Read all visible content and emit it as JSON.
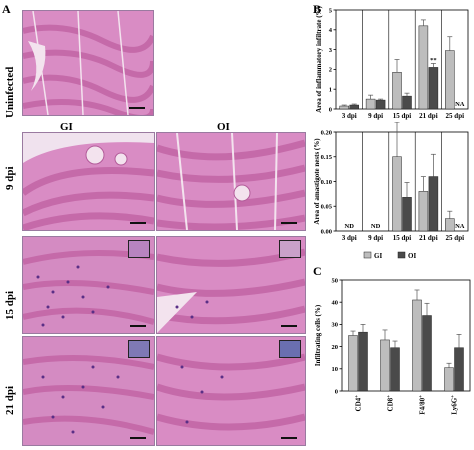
{
  "figure": {
    "panel_letters": {
      "a": "A",
      "b": "B",
      "c": "C"
    },
    "column_labels": [
      "GI",
      "OI"
    ],
    "row_labels": [
      "Uninfected",
      "9 dpi",
      "15 dpi",
      "21 dpi"
    ]
  },
  "colors": {
    "gi_bar": "#bdbdbd",
    "oi_bar": "#4a4a4a",
    "tissue_base": "#d98cc4",
    "tissue_fiber": "#c56aa9",
    "tissue_gap": "#f3e3ee",
    "nuclei": "#5a2f86"
  },
  "chart_data": [
    {
      "id": "B-top",
      "type": "bar",
      "ylabel": "Area of inflammatory infiltrate (%)",
      "categories": [
        "3 dpi",
        "9 dpi",
        "15 dpi",
        "21 dpi",
        "25 dpi"
      ],
      "ylim": [
        0,
        5
      ],
      "yticks": [
        "0",
        "1",
        "2",
        "3",
        "4",
        "5"
      ],
      "series": [
        {
          "name": "GI",
          "values": [
            0.15,
            0.5,
            1.85,
            4.2,
            2.95
          ],
          "errors": [
            0.05,
            0.2,
            0.65,
            0.3,
            0.7
          ]
        },
        {
          "name": "OI",
          "values": [
            0.2,
            0.45,
            0.65,
            2.1,
            null
          ],
          "errors": [
            0.05,
            0.05,
            0.15,
            0.2,
            null
          ]
        }
      ],
      "annotations": [
        {
          "category": "21 dpi",
          "series": "OI",
          "text": "**"
        },
        {
          "category": "25 dpi",
          "series": "OI",
          "text": "NA"
        }
      ]
    },
    {
      "id": "B-bottom",
      "type": "bar",
      "ylabel": "Area of amastigote nests (%)",
      "categories": [
        "3 dpi",
        "9 dpi",
        "15 dpi",
        "21 dpi",
        "25 dpi"
      ],
      "ylim": [
        0,
        0.2
      ],
      "yticks": [
        "0.00",
        "0.05",
        "0.10",
        "0.15",
        "0.20"
      ],
      "series": [
        {
          "name": "GI",
          "values": [
            null,
            null,
            0.15,
            0.08,
            0.025
          ],
          "errors": [
            null,
            null,
            0.07,
            0.03,
            0.015
          ]
        },
        {
          "name": "OI",
          "values": [
            null,
            null,
            0.068,
            0.11,
            null
          ],
          "errors": [
            null,
            null,
            0.03,
            0.045,
            null
          ]
        }
      ],
      "annotations": [
        {
          "category": "3 dpi",
          "text": "ND"
        },
        {
          "category": "9 dpi",
          "text": "ND"
        },
        {
          "category": "25 dpi",
          "series": "OI",
          "text": "NA"
        }
      ],
      "legend": [
        "GI",
        "OI"
      ]
    },
    {
      "id": "C",
      "type": "bar",
      "ylabel": "Infiltrating cells (%)",
      "categories": [
        "CD4+",
        "CD8+",
        "F4/80+",
        "Ly6G+"
      ],
      "ylim": [
        0,
        50
      ],
      "yticks": [
        "0",
        "10",
        "20",
        "30",
        "40",
        "50"
      ],
      "series": [
        {
          "name": "GI",
          "values": [
            25,
            23,
            41,
            10.5
          ],
          "errors": [
            2,
            4.5,
            4.5,
            2
          ]
        },
        {
          "name": "OI",
          "values": [
            26.5,
            19.5,
            34,
            19.5
          ],
          "errors": [
            3.5,
            3,
            5.5,
            6
          ]
        }
      ]
    }
  ]
}
